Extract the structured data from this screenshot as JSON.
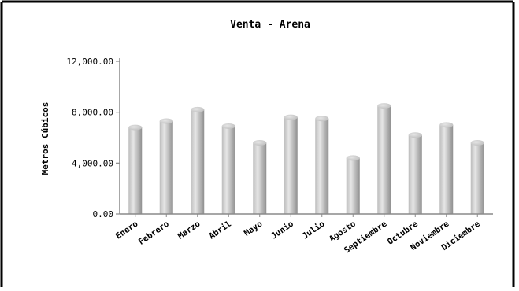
{
  "chart_data": {
    "type": "bar",
    "title": "Venta - Arena",
    "xlabel": "",
    "ylabel": "Metros Cúbicos",
    "categories": [
      "Enero",
      "Febrero",
      "Marzo",
      "Abril",
      "Mayo",
      "Junio",
      "Julio",
      "Agosto",
      "Septiembre",
      "Octubre",
      "Noviembre",
      "Diciembre"
    ],
    "values": [
      6800,
      7300,
      8200,
      6900,
      5600,
      7600,
      7500,
      4400,
      8500,
      6200,
      7000,
      5600
    ],
    "ylim": [
      0,
      12000
    ],
    "yticks": [
      0,
      4000,
      8000,
      12000
    ],
    "ytick_labels": [
      "0.00",
      "4,000.00",
      "8,000.00",
      "12,000.00"
    ],
    "grid": false,
    "legend": "none",
    "colors": {
      "bar_light": "#e6e6e6",
      "bar_mid": "#bdbdbd",
      "bar_dark": "#8f8f8f",
      "axis": "#8a8a8a",
      "text": "#000000",
      "frame": "#000000"
    }
  }
}
